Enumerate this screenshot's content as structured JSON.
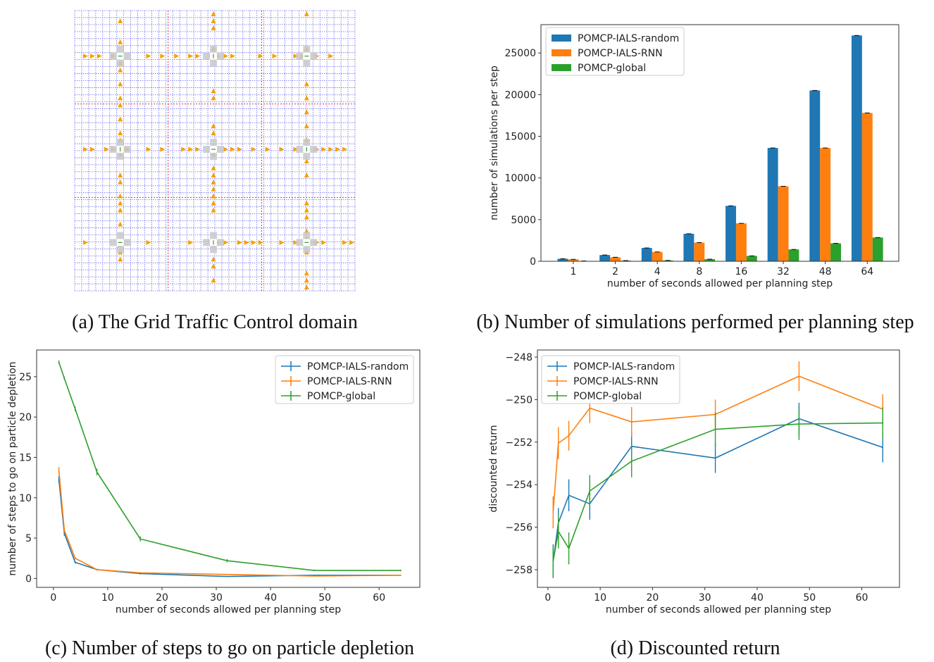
{
  "panels": {
    "a": {
      "caption": "(a) The Grid Traffic Control domain"
    },
    "b": {
      "caption": "(b) Number of simulations performed per planning step"
    },
    "c": {
      "caption": "(c) Number of steps to go on particle depletion"
    },
    "d": {
      "caption": "(d) Discounted return"
    }
  },
  "colors": {
    "random": "#1f77b4",
    "rnn": "#ff7f0e",
    "global": "#2ca02c",
    "grid_line": "#6b6bf0",
    "region_border": "#e0343f",
    "car": "#f5a000",
    "intersection": "#c8c8cc"
  },
  "chart_data": [
    {
      "type": "bar",
      "xlabel": "number of seconds allowed per planning step",
      "ylabel": "number of simulations per step",
      "categories": [
        "1",
        "2",
        "4",
        "8",
        "16",
        "32",
        "48",
        "64"
      ],
      "yticks": [
        0,
        5000,
        10000,
        15000,
        20000,
        25000
      ],
      "ylim": [
        0,
        28400
      ],
      "legend": "top-left",
      "series": [
        {
          "name": "POMCP-IALS-random",
          "color": "#1f77b4",
          "values": [
            300,
            750,
            1600,
            3300,
            6650,
            13600,
            20500,
            27100
          ]
        },
        {
          "name": "POMCP-IALS-RNN",
          "color": "#ff7f0e",
          "values": [
            230,
            480,
            1120,
            2240,
            4550,
            9000,
            13600,
            17800
          ]
        },
        {
          "name": "POMCP-global",
          "color": "#2ca02c",
          "values": [
            40,
            80,
            100,
            250,
            650,
            1420,
            2150,
            2850
          ]
        }
      ]
    },
    {
      "type": "line",
      "xlabel": "number of seconds allowed per planning step",
      "ylabel": "number of steps to go on particle depletion",
      "x": [
        1,
        2,
        4,
        8,
        16,
        32,
        48,
        64
      ],
      "xticks": [
        0,
        10,
        20,
        30,
        40,
        50,
        60
      ],
      "yticks": [
        0,
        5,
        10,
        15,
        20,
        25
      ],
      "xlim": [
        -3.1,
        67.5
      ],
      "ylim": [
        -1.1,
        28.3
      ],
      "legend": "top-right",
      "series": [
        {
          "name": "POMCP-IALS-random",
          "color": "#1f77b4",
          "values": [
            12.3,
            5.6,
            2.0,
            1.1,
            0.6,
            0.25,
            0.4,
            0.4
          ],
          "err": [
            0.4,
            0.3,
            0.15,
            0.1,
            0.1,
            0.05,
            0.05,
            0.05
          ]
        },
        {
          "name": "POMCP-IALS-RNN",
          "color": "#ff7f0e",
          "values": [
            13.4,
            6.0,
            2.5,
            1.1,
            0.7,
            0.5,
            0.3,
            0.4
          ],
          "err": [
            0.4,
            0.3,
            0.15,
            0.1,
            0.1,
            0.05,
            0.05,
            0.05
          ]
        },
        {
          "name": "POMCP-global",
          "color": "#2ca02c",
          "values": [
            26.8,
            24.8,
            21.0,
            13.2,
            4.9,
            2.2,
            1.0,
            1.0
          ],
          "err": [
            0.2,
            0.2,
            0.3,
            0.4,
            0.3,
            0.2,
            0.1,
            0.1
          ]
        }
      ]
    },
    {
      "type": "line",
      "xlabel": "number of seconds allowed per planning step",
      "ylabel": "discounted return",
      "x": [
        1,
        2,
        4,
        8,
        16,
        32,
        48,
        64
      ],
      "xticks": [
        0,
        10,
        20,
        30,
        40,
        50,
        60
      ],
      "yticks": [
        -258,
        -256,
        -254,
        -252,
        -250,
        -248
      ],
      "xlim": [
        -2.0,
        67.2
      ],
      "ylim": [
        -258.83,
        -247.67
      ],
      "legend": "top-left",
      "series": [
        {
          "name": "POMCP-IALS-random",
          "color": "#1f77b4",
          "values": [
            -257.6,
            -255.8,
            -254.5,
            -254.9,
            -252.2,
            -252.75,
            -250.9,
            -252.25
          ],
          "err": [
            0.7,
            0.7,
            0.75,
            0.75,
            0.7,
            0.7,
            0.75,
            0.7
          ]
        },
        {
          "name": "POMCP-IALS-RNN",
          "color": "#ff7f0e",
          "values": [
            -255.3,
            -252.05,
            -251.7,
            -250.4,
            -251.05,
            -250.7,
            -248.9,
            -250.45
          ],
          "err": [
            0.75,
            0.75,
            0.7,
            0.7,
            0.7,
            0.7,
            0.7,
            0.7
          ]
        },
        {
          "name": "POMCP-global",
          "color": "#2ca02c",
          "values": [
            -257.6,
            -256.2,
            -257.0,
            -254.3,
            -252.9,
            -251.4,
            -251.15,
            -251.1
          ],
          "err": [
            0.8,
            0.8,
            0.75,
            0.75,
            0.75,
            0.8,
            0.75,
            0.75
          ]
        }
      ]
    }
  ]
}
